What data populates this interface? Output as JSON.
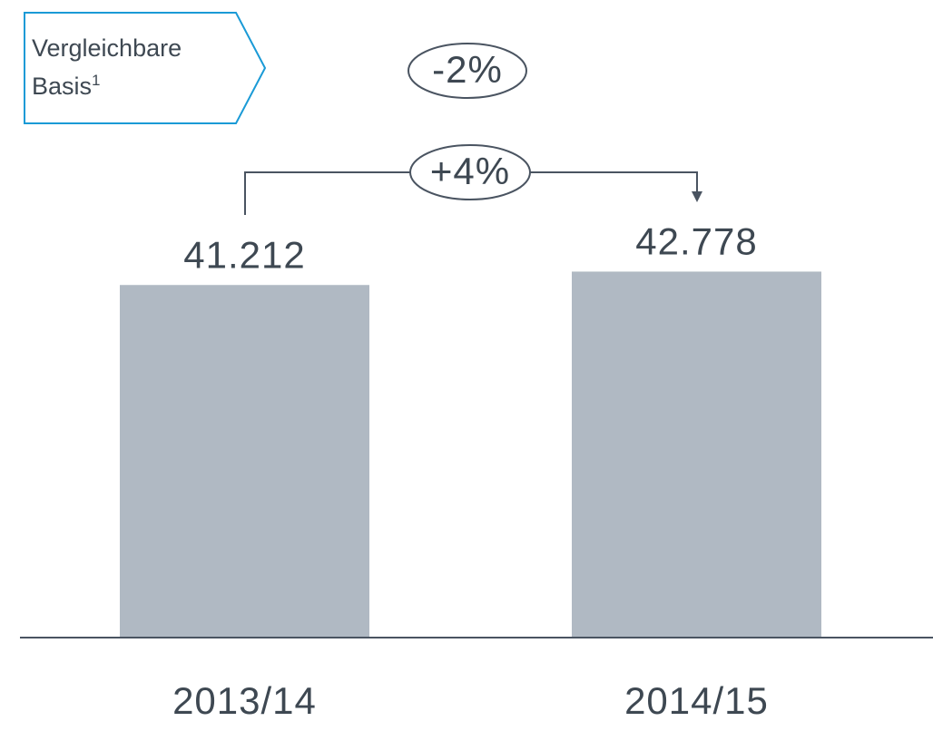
{
  "chart_data": {
    "type": "bar",
    "badge_lines": [
      "Vergleichbare",
      "Basis"
    ],
    "badge_footnote": "1",
    "annotations": [
      "-2%",
      "+4%"
    ],
    "categories": [
      "2013/14",
      "2014/15"
    ],
    "values": [
      41212,
      42778
    ],
    "value_labels": [
      "41.212",
      "42.778"
    ],
    "color": "#b0b9c3",
    "ylim": [
      0,
      60000
    ]
  }
}
